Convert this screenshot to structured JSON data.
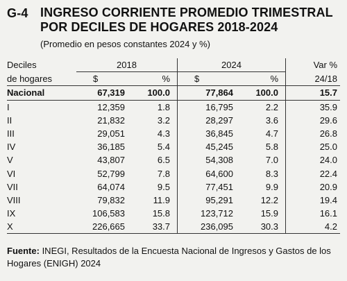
{
  "header": {
    "code": "G-4",
    "title_line1": "INGRESO CORRIENTE PROMEDIO TRIMESTRAL",
    "title_line2": "POR DECILES DE HOGARES 2018-2024",
    "subtitle": "(Promedio en pesos constantes 2024 y %)"
  },
  "table": {
    "col_label_line1": "Deciles",
    "col_label_line2": "de hogares",
    "year1": "2018",
    "year2": "2024",
    "currency": "$",
    "percent": "%",
    "var_line1": "Var %",
    "var_line2": "24/18",
    "rows": [
      {
        "label": "Nacional",
        "v2018": "67,319",
        "p2018": "100.0",
        "v2024": "77,864",
        "p2024": "100.0",
        "var": "15.7"
      },
      {
        "label": "I",
        "v2018": "12,359",
        "p2018": "1.8",
        "v2024": "16,795",
        "p2024": "2.2",
        "var": "35.9"
      },
      {
        "label": "II",
        "v2018": "21,832",
        "p2018": "3.2",
        "v2024": "28,297",
        "p2024": "3.6",
        "var": "29.6"
      },
      {
        "label": "III",
        "v2018": "29,051",
        "p2018": "4.3",
        "v2024": "36,845",
        "p2024": "4.7",
        "var": "26.8"
      },
      {
        "label": "IV",
        "v2018": "36,185",
        "p2018": "5.4",
        "v2024": "45,245",
        "p2024": "5.8",
        "var": "25.0"
      },
      {
        "label": "V",
        "v2018": "43,807",
        "p2018": "6.5",
        "v2024": "54,308",
        "p2024": "7.0",
        "var": "24.0"
      },
      {
        "label": "VI",
        "v2018": "52,799",
        "p2018": "7.8",
        "v2024": "64,600",
        "p2024": "8.3",
        "var": "22.4"
      },
      {
        "label": "VII",
        "v2018": "64,074",
        "p2018": "9.5",
        "v2024": "77,451",
        "p2024": "9.9",
        "var": "20.9"
      },
      {
        "label": "VIII",
        "v2018": "79,832",
        "p2018": "11.9",
        "v2024": "95,291",
        "p2024": "12.2",
        "var": "19.4"
      },
      {
        "label": "IX",
        "v2018": "106,583",
        "p2018": "15.8",
        "v2024": "123,712",
        "p2024": "15.9",
        "var": "16.1"
      },
      {
        "label": "X",
        "v2018": "226,665",
        "p2018": "33.7",
        "v2024": "236,095",
        "p2024": "30.3",
        "var": "4.2"
      }
    ]
  },
  "footer": {
    "source_label": "Fuente:",
    "source_text": " INEGI, Resultados de la Encuesta Nacional de Ingresos y Gastos de los Hogares (ENIGH) 2024"
  }
}
